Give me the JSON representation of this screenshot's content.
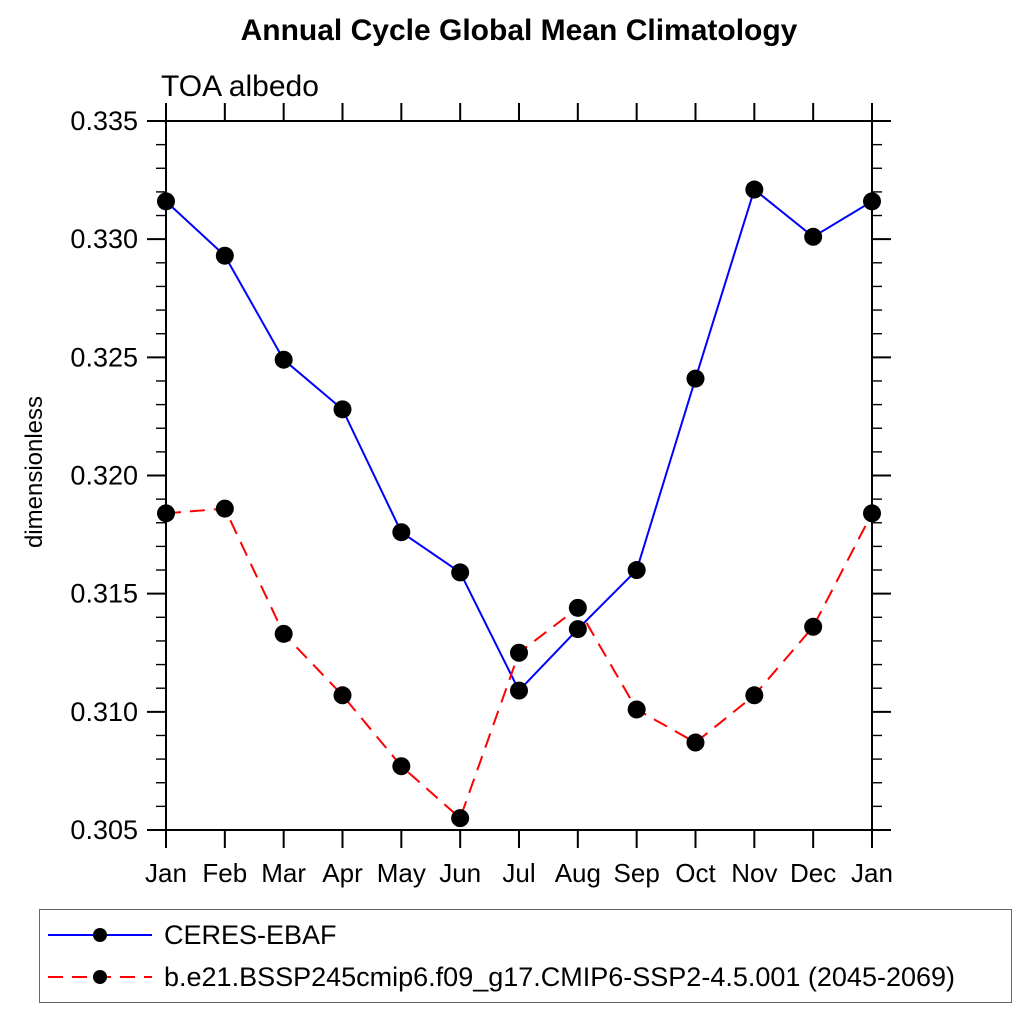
{
  "chart_data": {
    "type": "line",
    "title": "Annual Cycle Global Mean Climatology",
    "subtitle": "TOA albedo",
    "ylabel": "dimensionless",
    "xlabel": "",
    "categories": [
      "Jan",
      "Feb",
      "Mar",
      "Apr",
      "May",
      "Jun",
      "Jul",
      "Aug",
      "Sep",
      "Oct",
      "Nov",
      "Dec",
      "Jan"
    ],
    "ylim": [
      0.305,
      0.335
    ],
    "ytick_labels": [
      "0.305",
      "0.310",
      "0.315",
      "0.320",
      "0.325",
      "0.330",
      "0.335"
    ],
    "yticks_major": [
      0.305,
      0.31,
      0.315,
      0.32,
      0.325,
      0.33,
      0.335
    ],
    "ytick_minor_step": 0.001,
    "grid": false,
    "legend_position": "bottom-left-box",
    "frame_color": "#000000",
    "marker_color": "#000000",
    "series": [
      {
        "name": "CERES-EBAF",
        "color": "#0000ff",
        "line_style": "solid",
        "marker": "circle",
        "values": [
          0.3316,
          0.3293,
          0.3249,
          0.3228,
          0.3176,
          0.3159,
          0.3109,
          0.3135,
          0.316,
          0.3241,
          0.3321,
          0.3301,
          0.3316
        ]
      },
      {
        "name": "b.e21.BSSP245cmip6.f09_g17.CMIP6-SSP2-4.5.001 (2045-2069)",
        "color": "#ff0000",
        "line_style": "dashed",
        "marker": "circle",
        "values": [
          0.3184,
          0.3186,
          0.3133,
          0.3107,
          0.3077,
          0.3055,
          0.3125,
          0.3144,
          0.3101,
          0.3087,
          0.3107,
          0.3136,
          0.3184
        ]
      }
    ]
  }
}
